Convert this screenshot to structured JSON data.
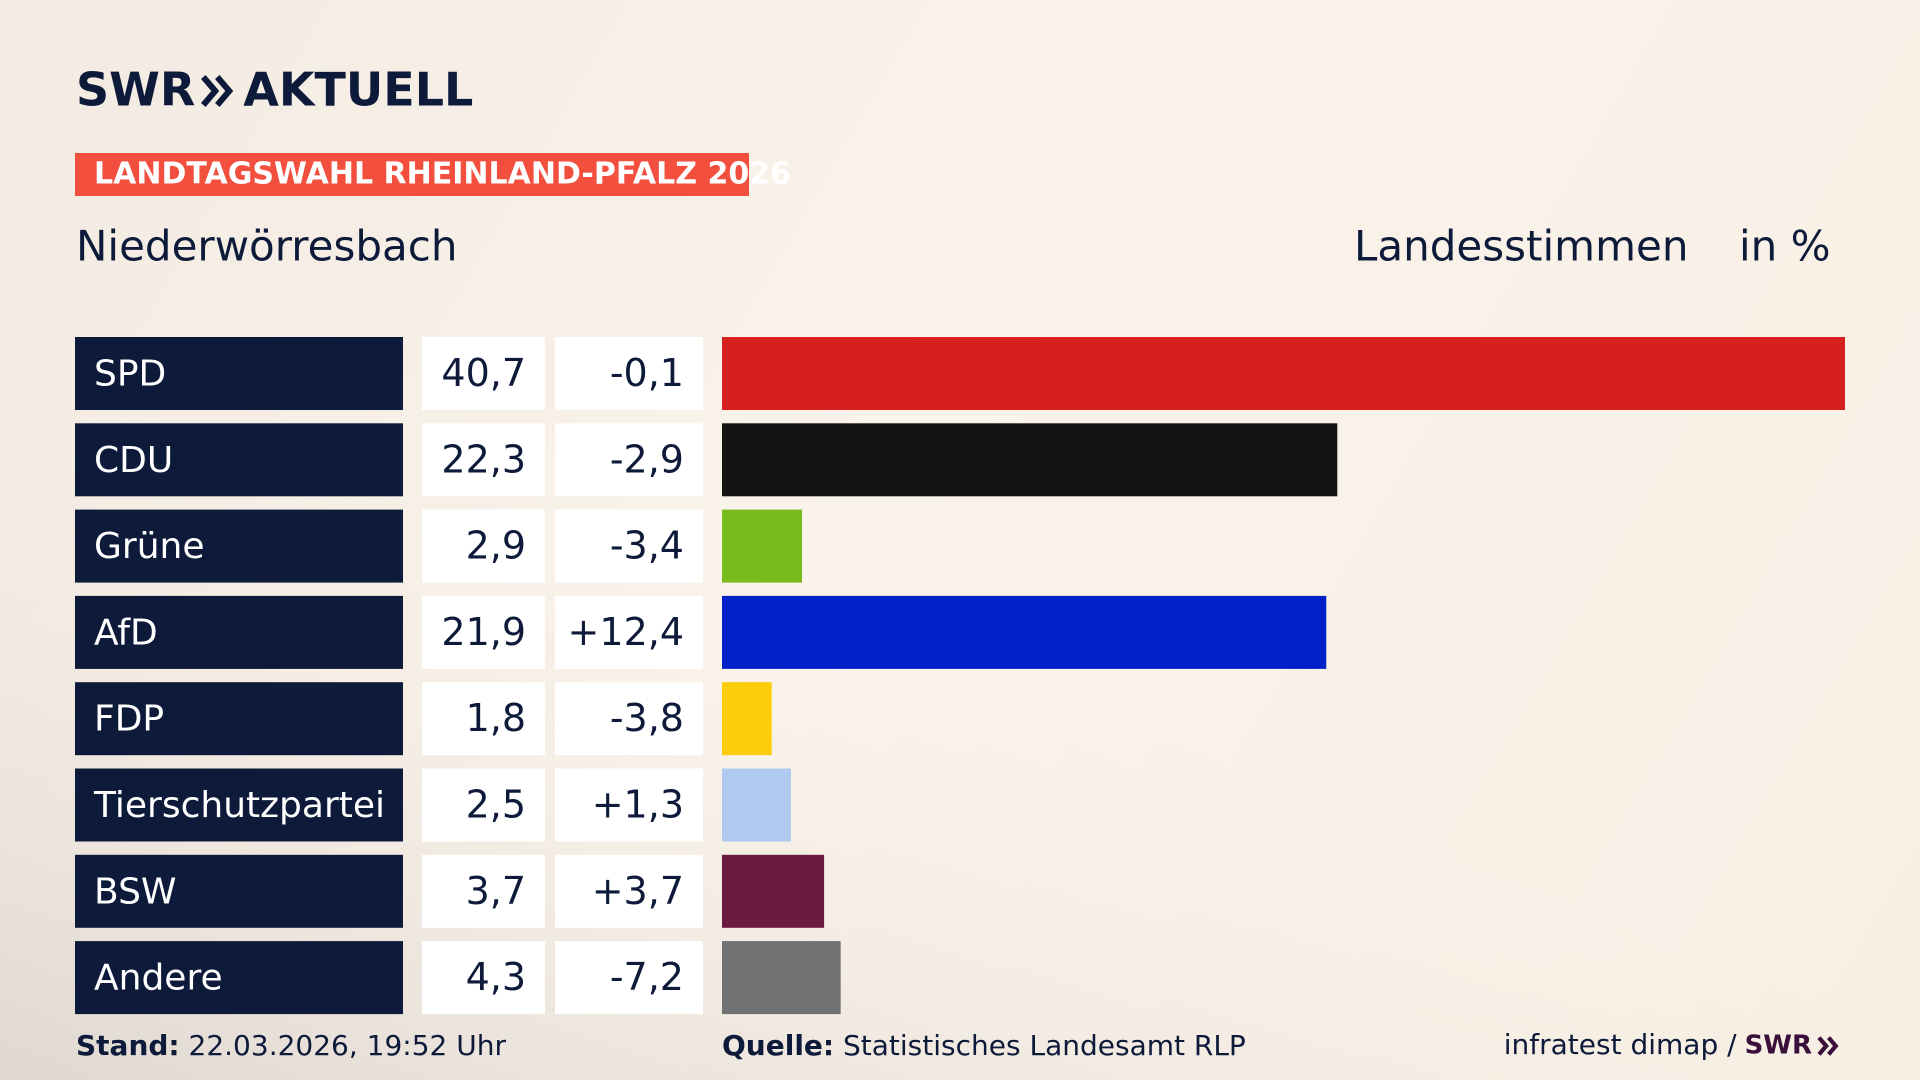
{
  "header": {
    "brand": "SWR",
    "brand_suffix": "AKTUELL"
  },
  "chart_data": {
    "type": "bar",
    "orientation": "horizontal",
    "title": "LANDTAGSWAHL RHEINLAND-PFALZ 2026",
    "subtitle": "Niederwörresbach",
    "value_axis_label": "Landesstimmen",
    "unit_label": "in %",
    "categories": [
      "SPD",
      "CDU",
      "Grüne",
      "AfD",
      "FDP",
      "Tierschutzpartei",
      "BSW",
      "Andere"
    ],
    "values": [
      40.7,
      22.3,
      2.9,
      21.9,
      1.8,
      2.5,
      3.7,
      4.3
    ],
    "value_labels": [
      "40,7",
      "22,3",
      "2,9",
      "21,9",
      "1,8",
      "2,5",
      "3,7",
      "4,3"
    ],
    "changes": [
      -0.1,
      -2.9,
      -3.4,
      12.4,
      -3.8,
      1.3,
      3.7,
      -7.2
    ],
    "change_labels": [
      "-0,1",
      "-2,9",
      "-3,4",
      "+12,4",
      "-3,8",
      "+1,3",
      "+3,7",
      "-7,2"
    ],
    "colors": [
      "#d61f1f",
      "#141414",
      "#78bc1b",
      "#0020c8",
      "#fdcc0a",
      "#aecbef",
      "#691a3e",
      "#707172"
    ]
  },
  "footer": {
    "stand_label": "Stand:",
    "stand": "22.03.2026, 19:52 Uhr",
    "source_label": "Quelle:",
    "source": "Statistisches Landesamt RLP",
    "credit": "infratest dimap /",
    "credit_brand": "SWR"
  }
}
